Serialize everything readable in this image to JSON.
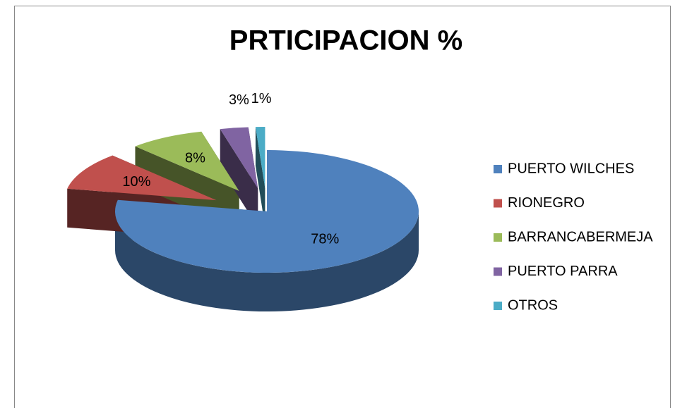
{
  "chart_data": {
    "type": "pie3d",
    "title": "PRTICIPACION %",
    "categories": [
      "PUERTO WILCHES",
      "RIONEGRO",
      "BARRANCABERMEJA",
      "PUERTO PARRA",
      "OTROS"
    ],
    "values": [
      78,
      10,
      8,
      3,
      1
    ],
    "value_labels": [
      "78%",
      "10%",
      "8%",
      "3%",
      "1%"
    ],
    "colors": [
      "#4f81bd",
      "#c0504d",
      "#9bbb59",
      "#8064a2",
      "#4bacc6"
    ],
    "legend": "right"
  }
}
